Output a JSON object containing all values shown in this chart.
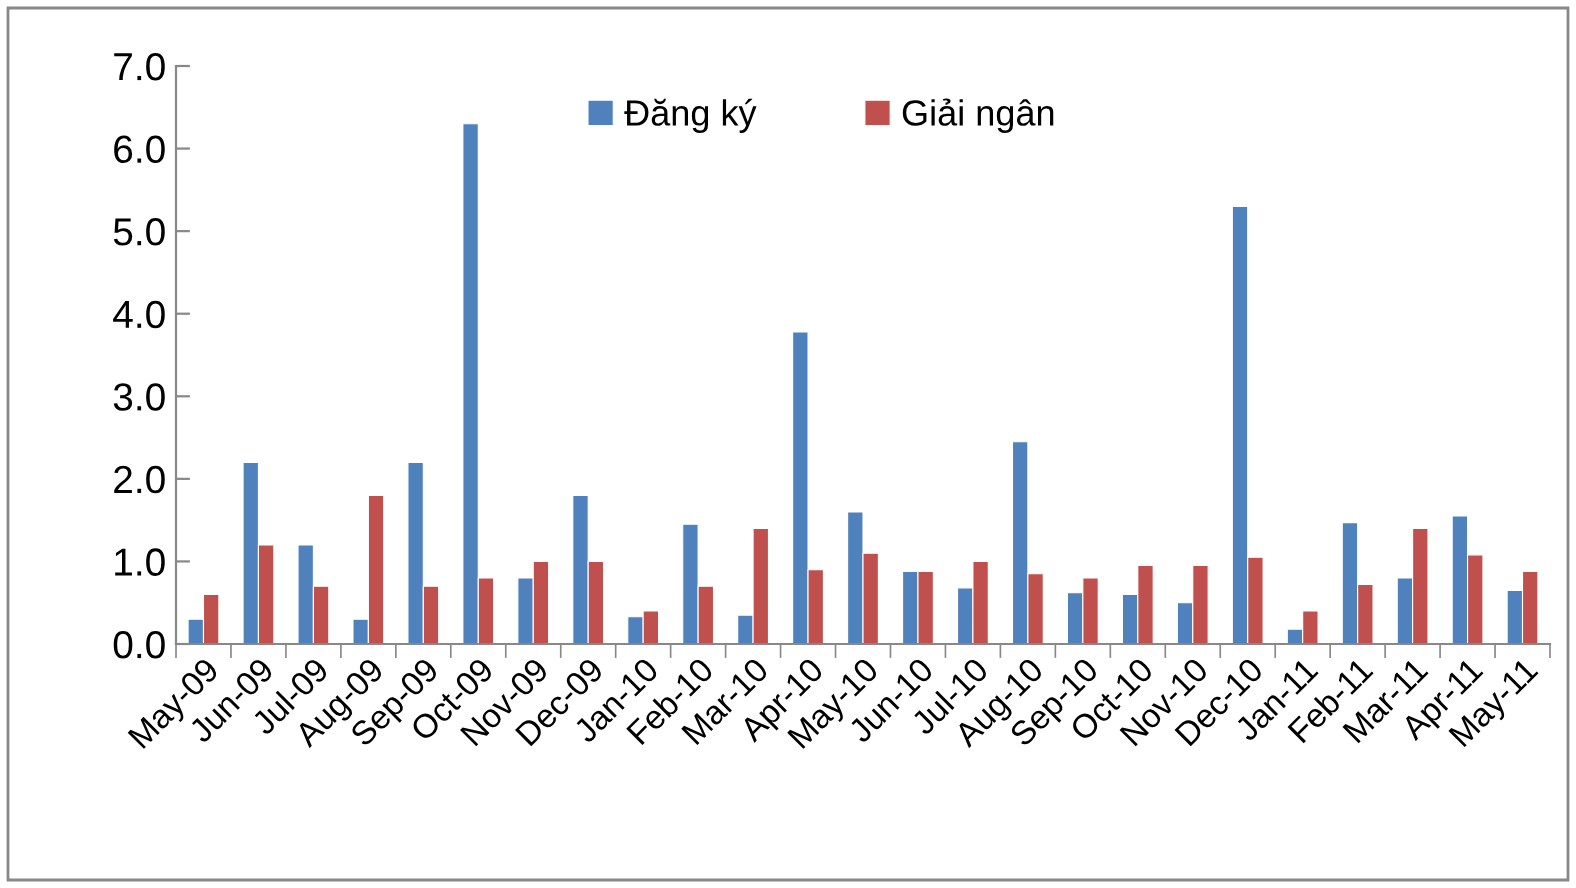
{
  "chart_data": {
    "type": "bar",
    "categories": [
      "May-09",
      "Jun-09",
      "Jul-09",
      "Aug-09",
      "Sep-09",
      "Oct-09",
      "Nov-09",
      "Dec-09",
      "Jan-10",
      "Feb-10",
      "Mar-10",
      "Apr-10",
      "May-10",
      "Jun-10",
      "Jul-10",
      "Aug-10",
      "Sep-10",
      "Oct-10",
      "Nov-10",
      "Dec-10",
      "Jan-11",
      "Feb-11",
      "Mar-11",
      "Apr-11",
      "May-11"
    ],
    "series": [
      {
        "name": "Đăng ký",
        "color": "#4f81bd",
        "values": [
          0.3,
          2.2,
          1.2,
          0.3,
          2.2,
          6.3,
          0.8,
          1.8,
          0.33,
          1.45,
          0.35,
          3.78,
          1.6,
          0.88,
          0.68,
          2.45,
          0.62,
          0.6,
          0.5,
          5.3,
          0.18,
          1.47,
          0.8,
          1.55,
          0.65
        ]
      },
      {
        "name": "Giải ngân",
        "color": "#c0504d",
        "values": [
          0.6,
          1.2,
          0.7,
          1.8,
          0.7,
          0.8,
          1.0,
          1.0,
          0.4,
          0.7,
          1.4,
          0.9,
          1.1,
          0.88,
          1.0,
          0.85,
          0.8,
          0.95,
          0.95,
          1.05,
          0.4,
          0.72,
          1.4,
          1.08,
          0.88
        ]
      }
    ],
    "ylim": [
      0,
      7
    ],
    "yticks": [
      {
        "value": 0,
        "label": "0.0"
      },
      {
        "value": 1,
        "label": "1.0"
      },
      {
        "value": 2,
        "label": "2.0"
      },
      {
        "value": 3,
        "label": "3.0"
      },
      {
        "value": 4,
        "label": "4.0"
      },
      {
        "value": 5,
        "label": "5.0"
      },
      {
        "value": 6,
        "label": "6.0"
      },
      {
        "value": 7,
        "label": "7.0"
      }
    ],
    "grid": false,
    "legend": "top"
  }
}
